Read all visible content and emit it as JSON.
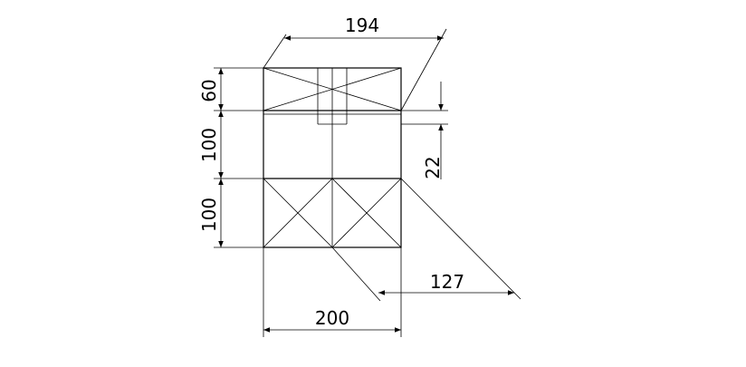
{
  "dimensions": {
    "top_width": "194",
    "left_top_height": "60",
    "left_middle_height": "100",
    "left_bottom_height": "100",
    "right_gap": "22",
    "diagonal_offset": "127",
    "bottom_width": "200"
  }
}
